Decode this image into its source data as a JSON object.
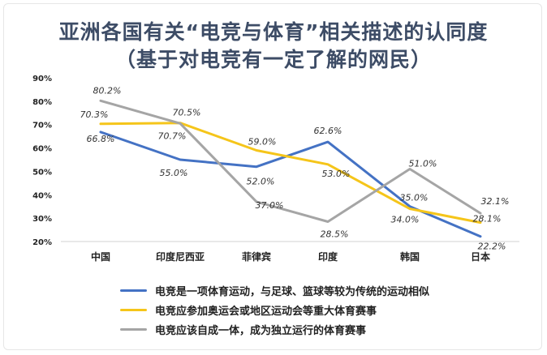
{
  "chart_data": {
    "type": "line",
    "title": "亚洲各国有关“电竞与体育”相关描述的认同度",
    "subtitle": "（基于对电竞有一定了解的网民）",
    "categories": [
      "中国",
      "印度尼西亚",
      "菲律宾",
      "印度",
      "韩国",
      "日本"
    ],
    "y_ticks": [
      "90%",
      "80%",
      "70%",
      "60%",
      "50%",
      "40%",
      "30%",
      "20%"
    ],
    "ylim": [
      20,
      90
    ],
    "grid": false,
    "legend_position": "bottom",
    "series": [
      {
        "name": "电竞是一项体育运动，与足球、篮球等较为传统的运动相似",
        "color": "#4472c4",
        "values": [
          66.8,
          55.0,
          52.0,
          62.6,
          35.0,
          22.2
        ],
        "labels": [
          "66.8%",
          "55.0%",
          "52.0%",
          "62.6%",
          "35.0%",
          "22.2%"
        ]
      },
      {
        "name": "电竞应参加奥运会或地区运动会等重大体育赛事",
        "color": "#f5c51a",
        "values": [
          70.3,
          70.7,
          59.0,
          53.0,
          34.0,
          28.1
        ],
        "labels": [
          "70.3%",
          "70.7%",
          "59.0%",
          "53.0%",
          "34.0%",
          "28.1%"
        ]
      },
      {
        "name": "电竞应该自成一体，成为独立运行的体育赛事",
        "color": "#a5a5a5",
        "values": [
          80.2,
          70.5,
          37.0,
          28.5,
          51.0,
          32.1
        ],
        "labels": [
          "80.2%",
          "70.5%",
          "37.0%",
          "28.5%",
          "51.0%",
          "32.1%"
        ]
      }
    ]
  }
}
